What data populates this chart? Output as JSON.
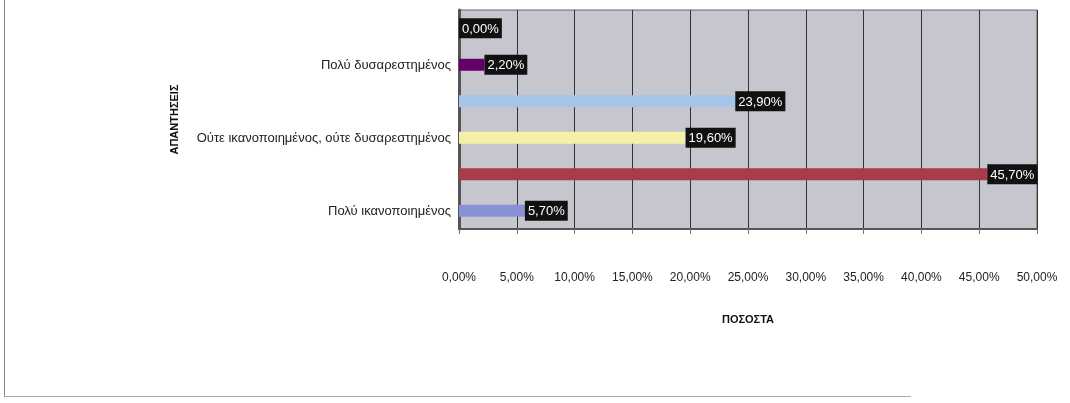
{
  "chart_data": {
    "type": "bar",
    "orientation": "horizontal",
    "categories": [
      null,
      "Πολύ δυσαρεστημένος",
      null,
      "Ούτε ικανοποιημένος, ούτε δυσαρεστημένος",
      null,
      "Πολύ ικανοποιημένος"
    ],
    "values": [
      0,
      2.2,
      23.9,
      19.6,
      45.7,
      5.7
    ],
    "colors": [
      "#ff8080",
      "#660066",
      "#a6c4e8",
      "#f4f0a8",
      "#a83c48",
      "#8890d8"
    ],
    "value_labels": [
      "0,00%",
      "2,20%",
      "23,90%",
      "19,60%",
      "45,70%",
      "5,70%"
    ],
    "xlabel": "ΠΟΣΟΣΤΑ",
    "ylabel": "ΑΠΑΝΤΗΣΕΙΣ",
    "xlim": [
      0,
      50
    ],
    "xticks": [
      {
        "value": 0,
        "label": "0,00%"
      },
      {
        "value": 5,
        "label": "5,00%"
      },
      {
        "value": 10,
        "label": "10,00%"
      },
      {
        "value": 15,
        "label": "15,00%"
      },
      {
        "value": 20,
        "label": "20,00%"
      },
      {
        "value": 25,
        "label": "25,00%"
      },
      {
        "value": 30,
        "label": "30,00%"
      },
      {
        "value": 35,
        "label": "35,00%"
      },
      {
        "value": 40,
        "label": "40,00%"
      },
      {
        "value": 45,
        "label": "45,00%"
      },
      {
        "value": 50,
        "label": "50,00%"
      }
    ],
    "grid": "x"
  }
}
